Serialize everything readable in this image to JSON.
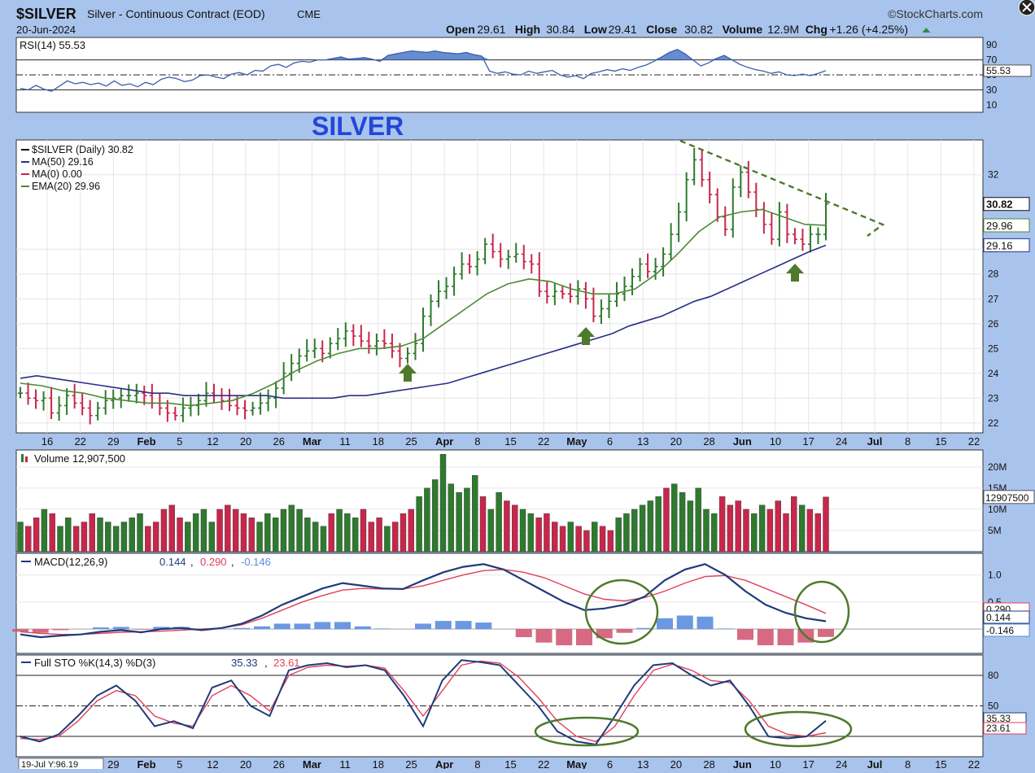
{
  "header": {
    "symbol": "$SILVER",
    "description": "Silver - Continuous Contract (EOD)",
    "exchange": "CME",
    "brand": "©StockCharts.com",
    "brand_icon": "x-circle-icon",
    "date": "20-Jun-2024",
    "ohlc": [
      {
        "label": "Open",
        "value": "29.61"
      },
      {
        "label": "High",
        "value": "30.84"
      },
      {
        "label": "Low",
        "value": "29.41"
      },
      {
        "label": "Close",
        "value": "30.82"
      },
      {
        "label": "Volume",
        "value": "12.9M"
      },
      {
        "label": "Chg",
        "value": "+1.26 (+4.25%)"
      }
    ],
    "chg_icon": "triangle-up-icon"
  },
  "annotation_title": "SILVER",
  "colors": {
    "up": "#2e7a2e",
    "down": "#c8264b",
    "ma50": "#2a2f86",
    "ema20": "#4e8a36",
    "macd": "#1f3b7a",
    "signal": "#e0405a",
    "hist_pos": "#5b8de0",
    "hist_neg": "#d25a74",
    "rsi": "#3a5fae",
    "rsi_fill": "#4a79c8",
    "sto_k": "#1f3b7a",
    "sto_d": "#e0405a",
    "annot": "#4e7a2c"
  },
  "chart_data": [
    {
      "panel": "rsi",
      "type": "line",
      "legend": "RSI(14) 55.53",
      "last_value": 55.53,
      "ylim": [
        0,
        100
      ],
      "ticks": [
        "90",
        "70",
        "50",
        "30",
        "10"
      ],
      "levels": [
        70,
        50,
        30
      ],
      "overbought_fill_above": 70,
      "values": [
        32,
        30,
        36,
        31,
        28,
        35,
        42,
        38,
        40,
        37,
        39,
        35,
        42,
        36,
        38,
        34,
        40,
        37,
        44,
        47,
        45,
        41,
        43,
        49,
        50,
        47,
        45,
        51,
        53,
        50,
        56,
        55,
        62,
        64,
        60,
        66,
        68,
        67,
        70,
        70,
        72,
        74,
        71,
        72,
        73,
        71,
        68,
        76,
        78,
        80,
        82,
        81,
        80,
        82,
        80,
        79,
        78,
        80,
        77,
        75,
        55,
        52,
        54,
        51,
        50,
        55,
        52,
        54,
        56,
        50,
        47,
        49,
        45,
        52,
        54,
        57,
        55,
        58,
        56,
        60,
        63,
        68,
        74,
        80,
        84,
        78,
        70,
        62,
        66,
        72,
        76,
        70,
        64,
        60,
        57,
        55,
        52,
        54,
        50,
        49,
        51,
        49,
        52,
        55.53
      ]
    },
    {
      "panel": "price",
      "type": "ohlc",
      "legend": "$SILVER (Daily) 30.82",
      "ylim": [
        21.6,
        33.4
      ],
      "ticks": [
        22,
        23,
        24,
        25,
        26,
        27,
        28,
        29,
        32
      ],
      "right_labels": [
        {
          "text": "30.82",
          "value": 30.82
        },
        {
          "text": "29.96",
          "value": 29.96
        },
        {
          "text": "29.16",
          "value": 29.16
        }
      ],
      "x_ticks": [
        "16",
        "22",
        "29",
        "Feb",
        "5",
        "12",
        "20",
        "26",
        "Mar",
        "11",
        "18",
        "25",
        "Apr",
        "8",
        "15",
        "22",
        "May",
        "6",
        "13",
        "20",
        "28",
        "Jun",
        "10",
        "17",
        "24",
        "Jul",
        "8",
        "15",
        "22"
      ],
      "close": [
        23.2,
        23.0,
        22.9,
        23.0,
        22.4,
        22.7,
        23.1,
        22.8,
        22.6,
        22.3,
        22.6,
        22.9,
        23.0,
        23.1,
        23.1,
        23.2,
        23.1,
        22.8,
        22.6,
        22.4,
        22.3,
        22.6,
        22.7,
        22.9,
        23.2,
        23.1,
        22.9,
        22.7,
        22.6,
        22.5,
        22.6,
        22.8,
        23.0,
        23.4,
        24.0,
        24.4,
        24.7,
        24.9,
        25.0,
        24.8,
        25.2,
        25.4,
        25.7,
        25.5,
        25.3,
        25.1,
        25.3,
        25.2,
        24.9,
        24.6,
        24.8,
        25.2,
        26.3,
        26.9,
        27.3,
        27.5,
        28.0,
        28.4,
        28.3,
        28.6,
        29.2,
        28.9,
        28.6,
        28.7,
        28.8,
        28.5,
        28.4,
        27.3,
        27.1,
        27.3,
        27.2,
        27.1,
        27.4,
        27.0,
        26.3,
        26.6,
        26.9,
        27.2,
        27.5,
        27.9,
        28.4,
        28.1,
        28.3,
        28.8,
        29.6,
        30.5,
        31.8,
        32.6,
        31.8,
        31.2,
        30.3,
        29.8,
        31.5,
        32.1,
        31.3,
        30.6,
        30.0,
        29.4,
        30.5,
        29.6,
        29.4,
        29.2,
        29.6,
        29.6,
        30.82
      ],
      "series": [
        {
          "name": "MA(50)",
          "legend": "MA(50) 29.16",
          "values": [
            23.8,
            23.9,
            23.8,
            23.7,
            23.6,
            23.5,
            23.4,
            23.3,
            23.2,
            23.2,
            23.1,
            23.1,
            23.1,
            23.1,
            23.1,
            23.1,
            23.0,
            23.0,
            23.0,
            23.0,
            23.1,
            23.1,
            23.2,
            23.3,
            23.4,
            23.5,
            23.6,
            23.8,
            24.0,
            24.2,
            24.4,
            24.6,
            24.8,
            25.0,
            25.2,
            25.4,
            25.6,
            25.9,
            26.1,
            26.3,
            26.6,
            26.9,
            27.1,
            27.4,
            27.7,
            28.0,
            28.3,
            28.6,
            28.9,
            29.16
          ]
        },
        {
          "name": "MA(0)",
          "legend": "MA(0) 0.00",
          "values": []
        },
        {
          "name": "EMA(20)",
          "legend": "EMA(20) 29.96",
          "values": [
            23.6,
            23.5,
            23.3,
            23.2,
            23.0,
            22.9,
            22.8,
            22.8,
            22.7,
            22.8,
            22.9,
            23.2,
            23.6,
            24.1,
            24.5,
            24.8,
            25.0,
            25.0,
            25.1,
            25.4,
            26.0,
            26.6,
            27.2,
            27.6,
            27.8,
            27.7,
            27.4,
            27.2,
            27.2,
            27.4,
            28.0,
            28.8,
            29.7,
            30.3,
            30.5,
            30.6,
            30.3,
            30.0,
            29.96
          ]
        }
      ]
    },
    {
      "panel": "volume",
      "type": "bar",
      "legend": "Volume 12,907,500",
      "last_value_label": "12907500",
      "ylim": [
        0,
        24
      ],
      "ticks": [
        "20M",
        "15M",
        "10M",
        "5M"
      ],
      "values": [
        7,
        6,
        8,
        10,
        9,
        6,
        8,
        6,
        7,
        9,
        8,
        7,
        6,
        7,
        8,
        9,
        6,
        7,
        10,
        11,
        8,
        7,
        9,
        10,
        7,
        10,
        11,
        10,
        9,
        8,
        7,
        9,
        8,
        10,
        11,
        10,
        8,
        7,
        6,
        9,
        10,
        9,
        8,
        10,
        7,
        8,
        6,
        7,
        9,
        10,
        13,
        15,
        17,
        23,
        16,
        14,
        15,
        18,
        13,
        10,
        14,
        12,
        11,
        10,
        9,
        8,
        9,
        7,
        6,
        7,
        6,
        5,
        7,
        6,
        5,
        8,
        9,
        10,
        11,
        12,
        13,
        15,
        16,
        14,
        12,
        15,
        10,
        9,
        13,
        11,
        12,
        10,
        9,
        11,
        10,
        12,
        9,
        13,
        11,
        10,
        9,
        12.9
      ]
    },
    {
      "panel": "macd",
      "type": "line",
      "legend": "MACD(12,26,9) 0.144, 0.290, -0.146",
      "legend_parts": [
        "MACD(12,26,9)",
        "0.144",
        "0.290",
        "-0.146"
      ],
      "ylim": [
        -0.45,
        1.4
      ],
      "ticks": [
        "1.0",
        "0.5"
      ],
      "right_labels": [
        {
          "text": "0.290",
          "value": 0.29
        },
        {
          "text": "0.144",
          "value": 0.144
        },
        {
          "text": "-0.146",
          "value": -0.146
        }
      ],
      "series": [
        {
          "name": "MACD",
          "values": [
            -0.1,
            -0.15,
            -0.12,
            -0.1,
            -0.05,
            -0.02,
            -0.06,
            0.0,
            0.02,
            -0.02,
            0.02,
            0.1,
            0.25,
            0.45,
            0.6,
            0.75,
            0.85,
            0.8,
            0.75,
            0.74,
            0.9,
            1.05,
            1.15,
            1.2,
            1.1,
            0.9,
            0.7,
            0.5,
            0.35,
            0.38,
            0.45,
            0.6,
            0.9,
            1.1,
            1.2,
            1.0,
            0.7,
            0.45,
            0.3,
            0.2,
            0.144
          ]
        },
        {
          "name": "Signal",
          "values": [
            -0.05,
            -0.08,
            -0.1,
            -0.1,
            -0.08,
            -0.06,
            -0.05,
            -0.04,
            -0.02,
            0.0,
            0.02,
            0.08,
            0.2,
            0.35,
            0.5,
            0.62,
            0.72,
            0.75,
            0.74,
            0.74,
            0.8,
            0.9,
            1.0,
            1.08,
            1.1,
            1.05,
            0.95,
            0.8,
            0.65,
            0.55,
            0.52,
            0.58,
            0.7,
            0.85,
            0.97,
            0.99,
            0.9,
            0.75,
            0.6,
            0.45,
            0.29
          ]
        },
        {
          "name": "Histogram",
          "values": [
            -0.05,
            -0.07,
            -0.02,
            0.0,
            0.03,
            0.04,
            -0.01,
            0.04,
            0.04,
            -0.02,
            0.0,
            0.02,
            0.05,
            0.1,
            0.1,
            0.13,
            0.13,
            0.05,
            0.01,
            0.0,
            0.1,
            0.15,
            0.15,
            0.12,
            0.0,
            -0.15,
            -0.25,
            -0.3,
            -0.3,
            -0.17,
            -0.07,
            0.02,
            0.2,
            0.25,
            0.23,
            0.01,
            -0.2,
            -0.3,
            -0.3,
            -0.25,
            -0.146
          ]
        }
      ]
    },
    {
      "panel": "stochastic",
      "type": "line",
      "legend": "Full STO %K(14,3) %D(3) 35.33, 23.61",
      "legend_parts": [
        "Full STO %K(14,3) %D(3)",
        "35.33",
        "23.61"
      ],
      "ylim": [
        0,
        100
      ],
      "ticks": [
        "80",
        "50"
      ],
      "levels": [
        80,
        50,
        20
      ],
      "right_labels": [
        {
          "text": "35.33",
          "value": 35.33
        },
        {
          "text": "23.61",
          "value": 23.61
        }
      ],
      "bottom_tag": "19-Jul Y:96.19",
      "series": [
        {
          "name": "%K",
          "values": [
            20,
            15,
            22,
            40,
            60,
            70,
            55,
            30,
            35,
            28,
            68,
            75,
            50,
            40,
            85,
            90,
            92,
            88,
            90,
            85,
            60,
            30,
            75,
            95,
            93,
            90,
            70,
            50,
            25,
            15,
            12,
            40,
            70,
            90,
            92,
            80,
            70,
            75,
            50,
            20,
            18,
            20,
            35.33
          ]
        },
        {
          "name": "%D",
          "values": [
            18,
            17,
            20,
            35,
            55,
            65,
            60,
            40,
            33,
            30,
            60,
            70,
            60,
            45,
            80,
            88,
            90,
            89,
            90,
            87,
            65,
            40,
            65,
            90,
            94,
            92,
            78,
            58,
            35,
            20,
            15,
            30,
            60,
            85,
            91,
            85,
            75,
            73,
            55,
            30,
            22,
            20,
            23.61
          ]
        }
      ]
    }
  ]
}
